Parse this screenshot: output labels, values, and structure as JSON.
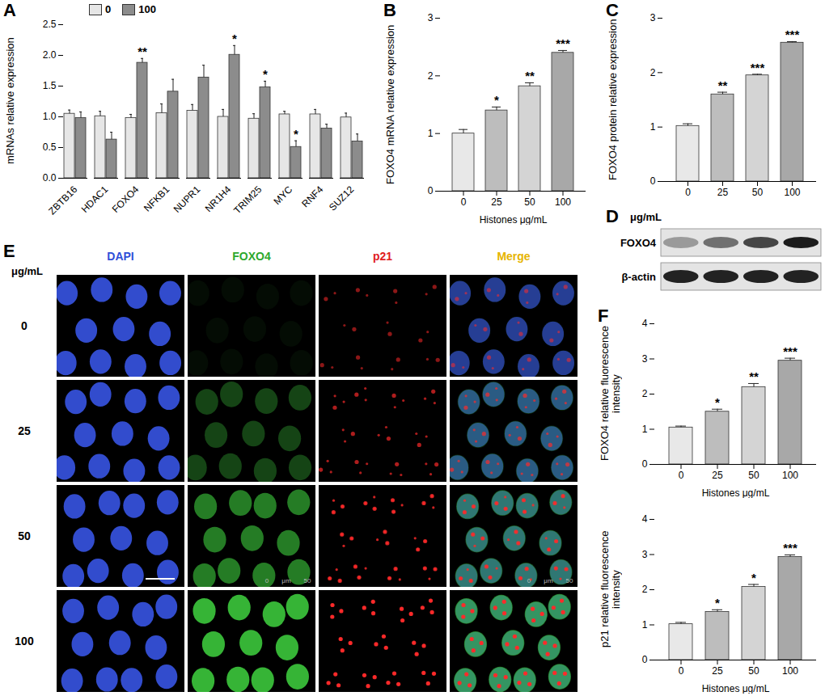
{
  "chart_data": [
    {
      "type": "bar",
      "label": "A",
      "ylabel": "mRNAs relative expression",
      "categories": [
        "ZBTB16",
        "HDAC1",
        "FOXO4",
        "NFKB1",
        "NUPR1",
        "NR1H4",
        "TRIM25",
        "MYC",
        "RNF4",
        "SUZ12"
      ],
      "series": [
        {
          "name": "0",
          "color": "#e6e6e6",
          "values": [
            1.05,
            1.01,
            0.98,
            1.06,
            1.1,
            1.0,
            0.97,
            1.04,
            1.04,
            0.99
          ],
          "errors": [
            0.06,
            0.08,
            0.06,
            0.15,
            0.1,
            0.12,
            0.08,
            0.05,
            0.08,
            0.07
          ],
          "annotations": [
            null,
            null,
            null,
            null,
            null,
            null,
            null,
            null,
            null,
            null
          ]
        },
        {
          "name": "100",
          "color": "#8c8c8c",
          "values": [
            0.98,
            0.63,
            1.88,
            1.41,
            1.64,
            2.01,
            1.48,
            0.51,
            0.81,
            0.6
          ],
          "errors": [
            0.1,
            0.12,
            0.07,
            0.2,
            0.2,
            0.15,
            0.1,
            0.1,
            0.07,
            0.12
          ],
          "annotations": [
            null,
            null,
            "**",
            null,
            null,
            "*",
            "*",
            "*",
            null,
            null
          ]
        }
      ],
      "ylim": [
        0,
        2.5
      ],
      "yticks": [
        {
          "value": 0,
          "label": "0.0"
        },
        {
          "value": 0.5,
          "label": "0.5"
        },
        {
          "value": 1,
          "label": "1.0"
        },
        {
          "value": 1.5,
          "label": "1.5"
        },
        {
          "value": 2,
          "label": "2.0"
        },
        {
          "value": 2.5,
          "label": "2.5"
        }
      ],
      "legend": "top"
    },
    {
      "type": "bar",
      "label": "B",
      "ylabel": "FOXO4 mRNA relative expression",
      "xlabel": "Histones μg/mL",
      "categories": [
        "0",
        "25",
        "50",
        "100"
      ],
      "series": [
        {
          "name": "FOXO4 mRNA",
          "colors": [
            "#e8e8e8",
            "#bdbdbd",
            "#d4d4d4",
            "#a8a8a8"
          ],
          "values": [
            1.0,
            1.4,
            1.82,
            2.4
          ],
          "errors": [
            0.07,
            0.06,
            0.06,
            0.04
          ],
          "annotations": [
            null,
            "*",
            "**",
            "***"
          ]
        }
      ],
      "ylim": [
        0,
        3
      ],
      "yticks": [
        0,
        1,
        2,
        3
      ]
    },
    {
      "type": "bar",
      "label": "C",
      "ylabel": "FOXO4 protein relative expression",
      "categories": [
        "0",
        "25",
        "50",
        "100"
      ],
      "series": [
        {
          "name": "FOXO4 protein",
          "colors": [
            "#e8e8e8",
            "#bdbdbd",
            "#d4d4d4",
            "#a8a8a8"
          ],
          "values": [
            1.02,
            1.6,
            1.95,
            2.55
          ],
          "errors": [
            0.04,
            0.04,
            0.02,
            0.02
          ],
          "annotations": [
            null,
            "**",
            "***",
            "***"
          ]
        }
      ],
      "ylim": [
        0,
        3
      ],
      "yticks": [
        0,
        1,
        2,
        3
      ]
    },
    {
      "type": "bar",
      "label": "F",
      "ylabel": "FOXO4 relative fluorescence intensity",
      "xlabel": "Histones μg/mL",
      "categories": [
        "0",
        "25",
        "50",
        "100"
      ],
      "series": [
        {
          "name": "FOXO4",
          "colors": [
            "#e8e8e8",
            "#bdbdbd",
            "#d4d4d4",
            "#a8a8a8"
          ],
          "values": [
            1.05,
            1.5,
            2.2,
            2.95
          ],
          "errors": [
            0.04,
            0.07,
            0.1,
            0.07
          ],
          "annotations": [
            null,
            "*",
            "**",
            "***"
          ]
        }
      ],
      "ylim": [
        0,
        4
      ],
      "yticks": [
        0,
        1,
        2,
        3,
        4
      ]
    },
    {
      "type": "bar",
      "ylabel": "p21 relative fluorescence intensity",
      "xlabel": "Histones μg/mL",
      "categories": [
        "0",
        "25",
        "50",
        "100"
      ],
      "series": [
        {
          "name": "p21",
          "colors": [
            "#e8e8e8",
            "#bdbdbd",
            "#d4d4d4",
            "#a8a8a8"
          ],
          "values": [
            1.02,
            1.37,
            2.08,
            2.93
          ],
          "errors": [
            0.05,
            0.06,
            0.07,
            0.06
          ],
          "annotations": [
            null,
            "*",
            "*",
            "***"
          ]
        }
      ],
      "ylim": [
        0,
        4
      ],
      "yticks": [
        0,
        1,
        2,
        3,
        4
      ]
    }
  ],
  "blot": {
    "label": "D",
    "header": "μg/mL",
    "rows": [
      "FOXO4",
      "β-actin"
    ]
  },
  "images": {
    "label": "E",
    "header": "μg/mL",
    "columns": [
      {
        "name": "DAPI",
        "color": "#2f4fd8"
      },
      {
        "name": "FOXO4",
        "color": "#2ea82e"
      },
      {
        "name": "p21",
        "color": "#e02020"
      },
      {
        "name": "Merge",
        "color": "#e6b400"
      }
    ],
    "rows": [
      "0",
      "25",
      "50",
      "100"
    ],
    "scale_bar": {
      "row": "50",
      "labels": [
        "0",
        "μm",
        "50"
      ]
    }
  }
}
